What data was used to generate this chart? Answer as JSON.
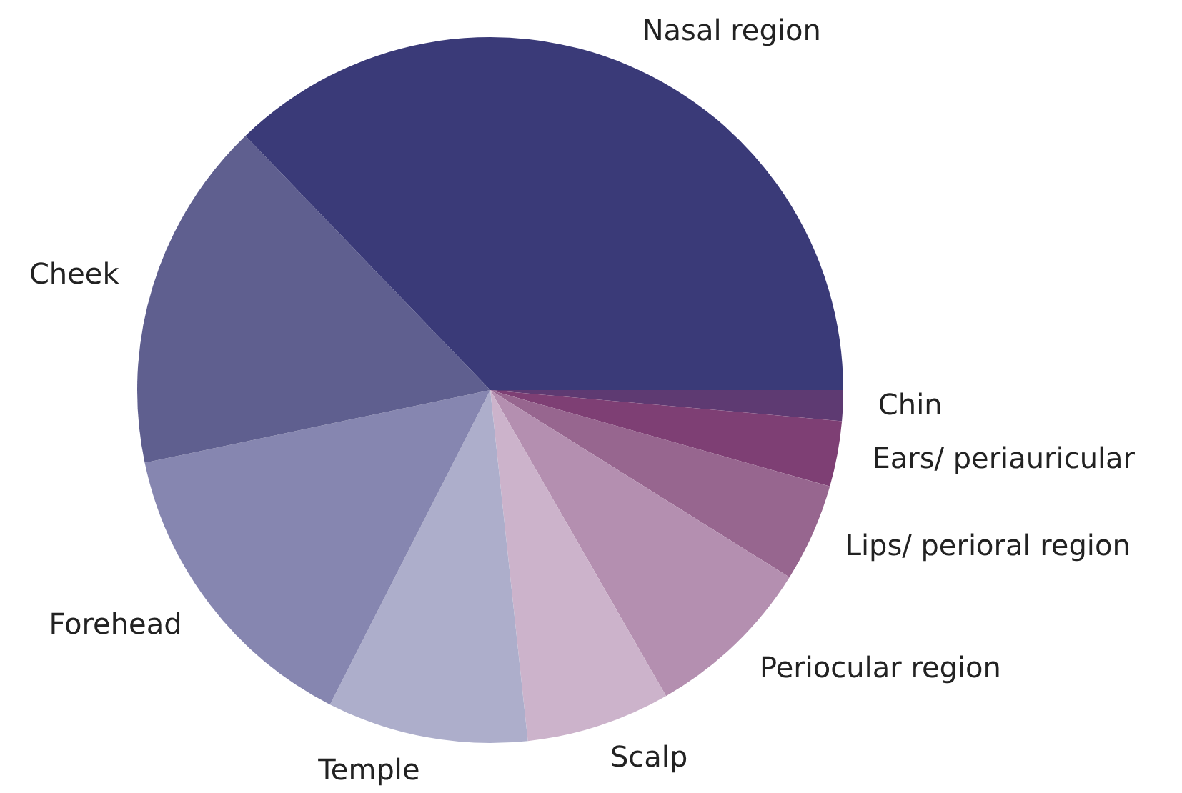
{
  "chart_data": {
    "type": "pie",
    "categories": [
      "Nasal region",
      "Cheek",
      "Forehead",
      "Temple",
      "Scalp",
      "Periocular region",
      "Lips/ perioral region",
      "Ears/ periauricular",
      "Chin"
    ],
    "values": [
      37.2,
      16.1,
      14.2,
      9.2,
      6.6,
      7.8,
      4.5,
      3.0,
      1.4
    ],
    "colors": [
      "#3a3a78",
      "#5f5f8f",
      "#8686b0",
      "#adaecb",
      "#ccb3cb",
      "#b48fb0",
      "#97668f",
      "#7e3f74",
      "#5e3a72"
    ]
  }
}
